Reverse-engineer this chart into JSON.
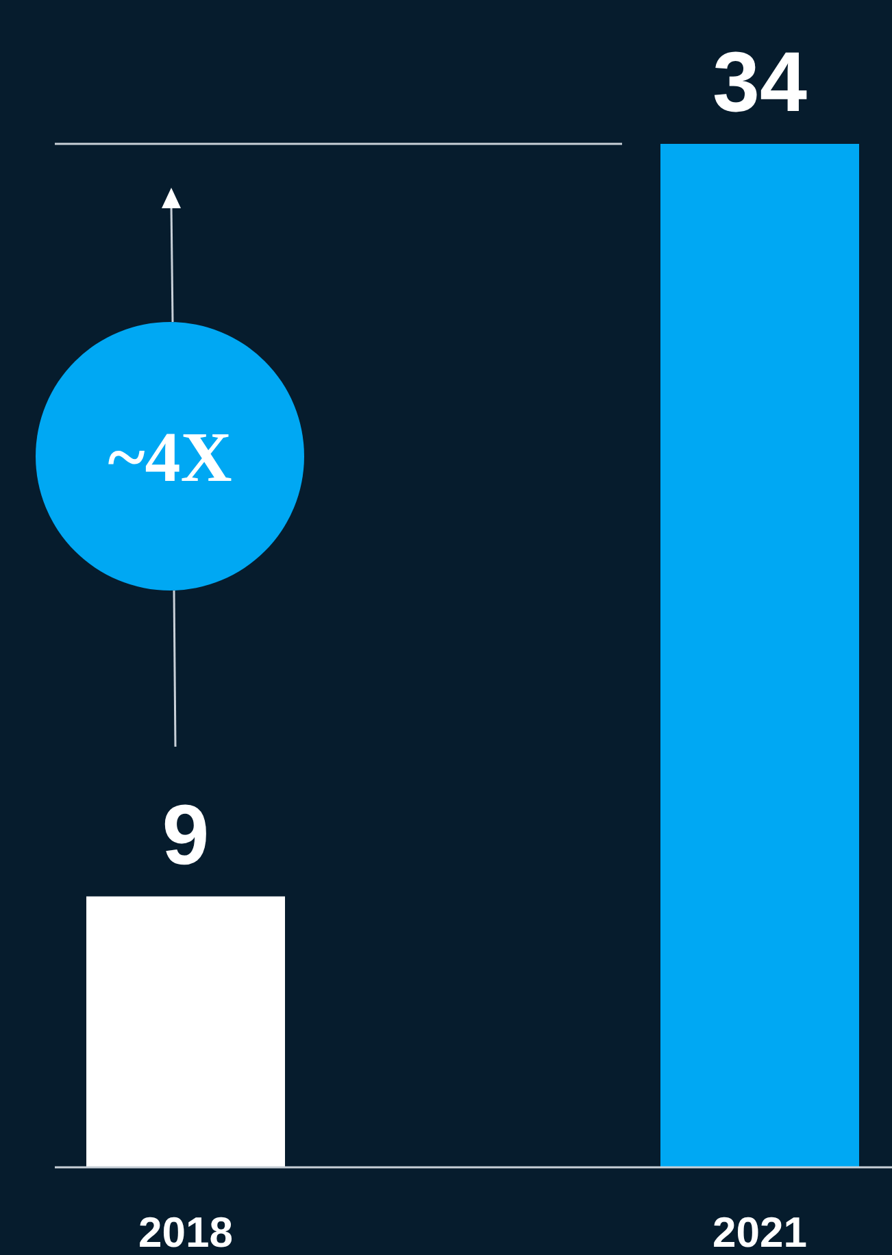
{
  "chart_data": {
    "type": "bar",
    "categories": [
      "2018",
      "2021"
    ],
    "values": [
      9,
      34
    ],
    "colors": [
      "#ffffff",
      "#00a8f3"
    ],
    "data_labels": true,
    "ref_lines": [
      {
        "axis": "y",
        "value": 34,
        "color": "#c8d0d8"
      }
    ],
    "annotations": [
      "~4X"
    ]
  }
}
